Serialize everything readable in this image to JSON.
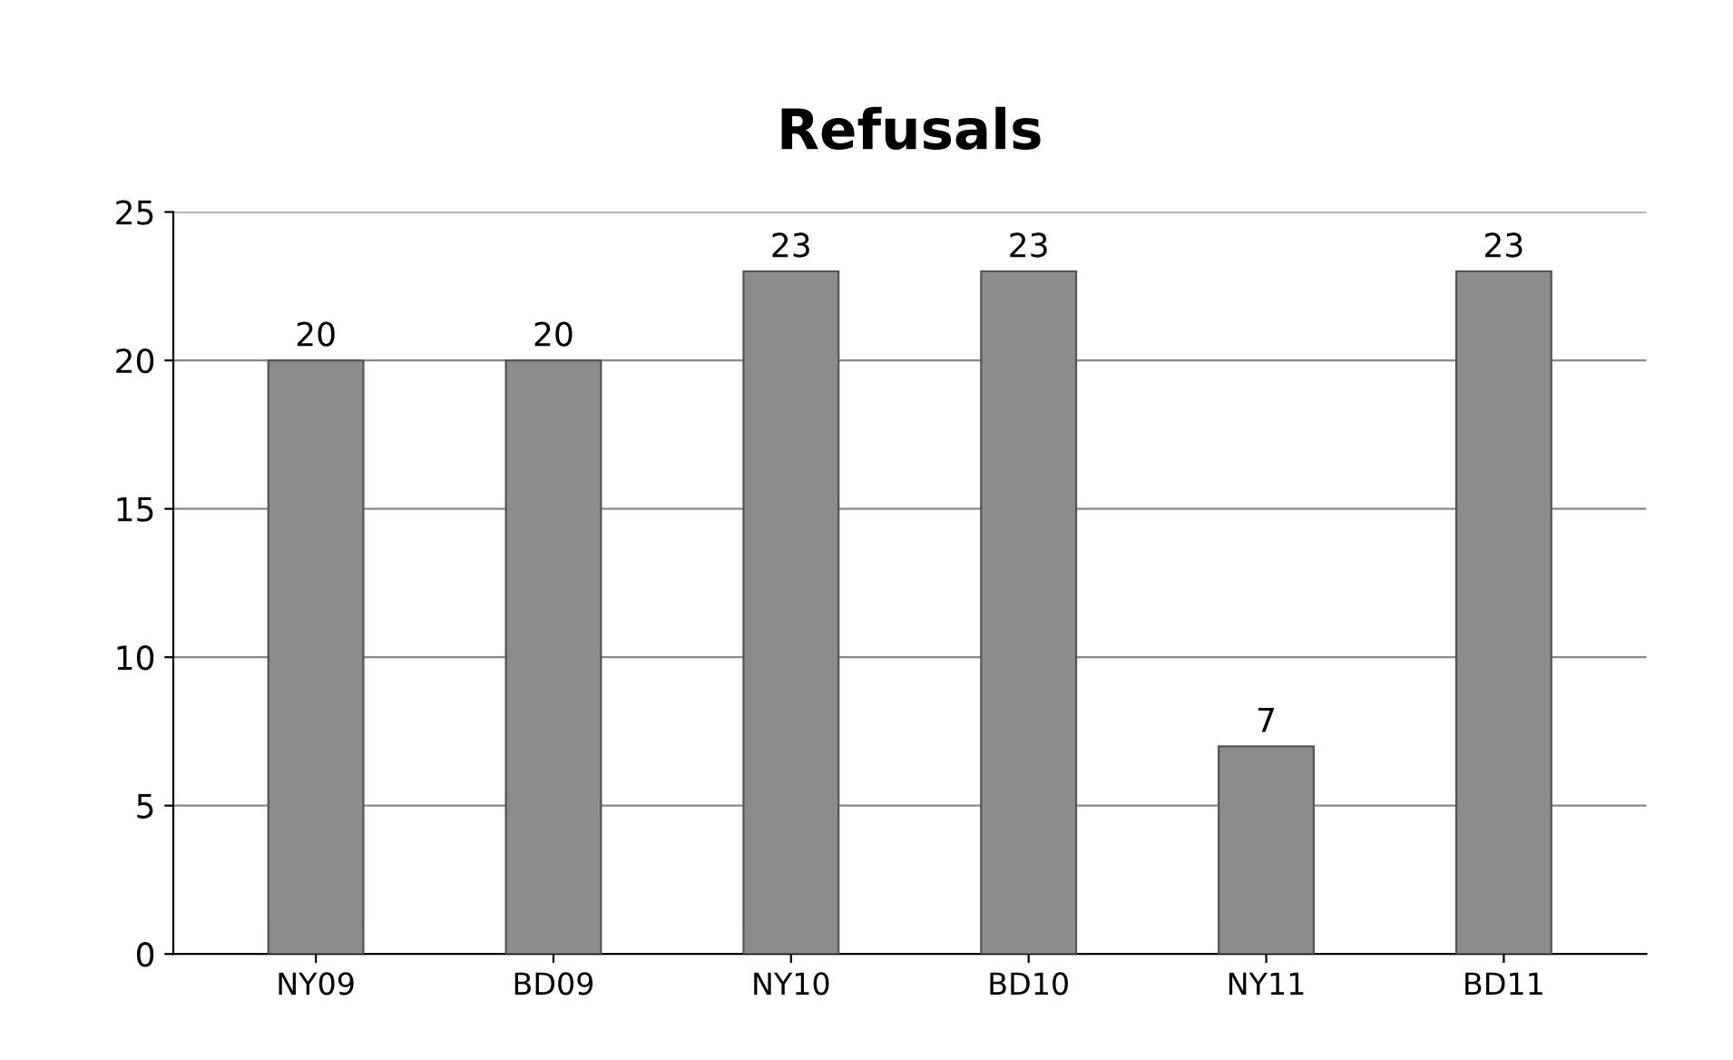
{
  "chart_data": {
    "type": "bar",
    "title": "Refusals",
    "categories": [
      "NY09",
      "BD09",
      "NY10",
      "BD10",
      "NY11",
      "BD11"
    ],
    "values": [
      20,
      20,
      23,
      23,
      7,
      23
    ],
    "color": "#8c8c8c",
    "ylim": [
      0,
      25
    ],
    "yticks": [
      0,
      5,
      10,
      15,
      20,
      25
    ],
    "grid": "y",
    "data_labels": true,
    "legend": false
  }
}
